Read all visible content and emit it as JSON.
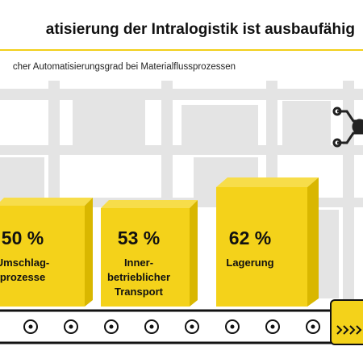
{
  "header": {
    "title": "atisierung der Intralogistik ist ausbaufähig",
    "subtitle": "cher Automatisierungsgrad bei Materialflussprozessen"
  },
  "items": [
    {
      "value": "50 %",
      "label": [
        "Umschlag-",
        "prozesse"
      ]
    },
    {
      "value": "53 %",
      "label": [
        "Inner-",
        "betrieblicher",
        "Transport"
      ]
    },
    {
      "value": "62 %",
      "label": [
        "Lagerung"
      ]
    }
  ]
}
